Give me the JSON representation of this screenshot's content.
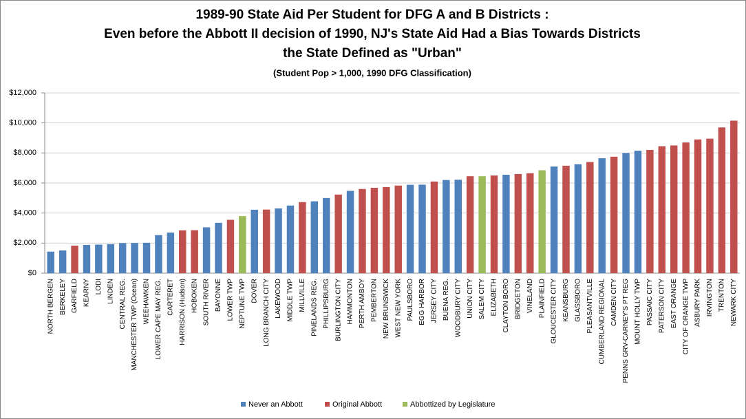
{
  "chart_data": {
    "type": "bar",
    "title": [
      "1989-90 State Aid Per Student for DFG A and B Districts :",
      "Even before the Abbott II decision of 1990, NJ's State Aid Had a Bias Towards Districts",
      "the State Defined as \"Urban\""
    ],
    "subtitle": "(Student Pop > 1,000, 1990 DFG Classification)",
    "categories": [
      "NORTH BERGEN",
      "BERKELEY",
      "GARFIELD",
      "KEARNY",
      "LODI",
      "LINDEN",
      "CENTRAL REG.",
      "MANCHESTER TWP (Ocean)",
      "WEEHAWKEN",
      "LOWER CAPE MAY REG.",
      "CARTERET",
      "HARRISON (Hudson)",
      "HOBOKEN",
      "SOUTH RIVER",
      "BAYONNE",
      "LOWER TWP",
      "NEPTUNE TWP",
      "DOVER",
      "LONG BRANCH CITY",
      "LAKEWOOD",
      "MIDDLE TWP",
      "MILLVILLE",
      "PINELANDS REG.",
      "PHILLIPSBURG",
      "BURLINGTON CITY",
      "HAMMONTON",
      "PERTH AMBOY",
      "PEMBERTON",
      "NEW BRUNSWICK",
      "WEST NEW YORK",
      "PAULSBORO",
      "EGG HARBOR",
      "JERSEY CITY",
      "BUENA REG.",
      "WOODBURY CITY",
      "UNION CITY",
      "SALEM CITY",
      "ELIZABETH",
      "CLAYTON BORO",
      "BRIDGETON",
      "VINELAND",
      "PLAINFIELD",
      "GLOUCESTER CITY",
      "KEANSBURG",
      "GLASSBORO",
      "PLEASANTVILLE",
      "CUMBERLAND REGIONAL",
      "CAMDEN CITY",
      "PENNS GRV-CARNEY'S PT REG",
      "MOUNT HOLLY TWP",
      "PASSAIC CITY",
      "PATERSON CITY",
      "EAST ORANGE",
      "CITY OF ORANGE TWP",
      "ASBURY PARK",
      "IRVINGTON",
      "TRENTON",
      "NEWARK CITY"
    ],
    "series": [
      {
        "name": "Never an Abbott",
        "color": "#4f81bd",
        "values": [
          1430,
          1510,
          null,
          1880,
          1900,
          1930,
          2000,
          2010,
          2020,
          2530,
          2700,
          null,
          null,
          3050,
          3350,
          null,
          null,
          4220,
          null,
          4310,
          4500,
          null,
          4780,
          5000,
          null,
          5480,
          null,
          null,
          null,
          null,
          5880,
          5890,
          null,
          6200,
          6220,
          null,
          null,
          null,
          6550,
          null,
          null,
          null,
          7100,
          null,
          7250,
          null,
          7650,
          null,
          8000,
          8150,
          null,
          null,
          null,
          null,
          null,
          null,
          null,
          null
        ]
      },
      {
        "name": "Original Abbott",
        "color": "#c0504d",
        "values": [
          null,
          null,
          1830,
          null,
          null,
          null,
          null,
          null,
          null,
          null,
          null,
          2850,
          2860,
          null,
          null,
          3550,
          null,
          null,
          4230,
          null,
          null,
          4730,
          null,
          null,
          5230,
          null,
          5600,
          5680,
          5730,
          5830,
          null,
          null,
          6100,
          null,
          null,
          6450,
          null,
          6500,
          null,
          6600,
          6650,
          null,
          null,
          7150,
          null,
          7400,
          null,
          7750,
          null,
          null,
          8200,
          8450,
          8500,
          8700,
          8900,
          8950,
          9700,
          10150
        ]
      },
      {
        "name": "Abbottized by Legislature",
        "color": "#9bbb59",
        "values": [
          null,
          null,
          null,
          null,
          null,
          null,
          null,
          null,
          null,
          null,
          null,
          null,
          null,
          null,
          null,
          null,
          3800,
          null,
          null,
          null,
          null,
          null,
          null,
          null,
          null,
          null,
          null,
          null,
          null,
          null,
          null,
          null,
          null,
          null,
          null,
          null,
          6450,
          null,
          null,
          null,
          null,
          6850,
          null,
          null,
          null,
          null,
          null,
          null,
          null,
          null,
          null,
          null,
          null,
          null,
          null,
          null,
          null,
          null
        ]
      }
    ],
    "ylim": [
      0,
      12000
    ],
    "yticks": [
      {
        "value": 0,
        "label": "$0"
      },
      {
        "value": 2000,
        "label": "$2,000"
      },
      {
        "value": 4000,
        "label": "$4,000"
      },
      {
        "value": 6000,
        "label": "$6,000"
      },
      {
        "value": 8000,
        "label": "$8,000"
      },
      {
        "value": 10000,
        "label": "$10,000"
      },
      {
        "value": 12000,
        "label": "$12,000"
      }
    ],
    "grid": true,
    "legend": "bottom"
  }
}
